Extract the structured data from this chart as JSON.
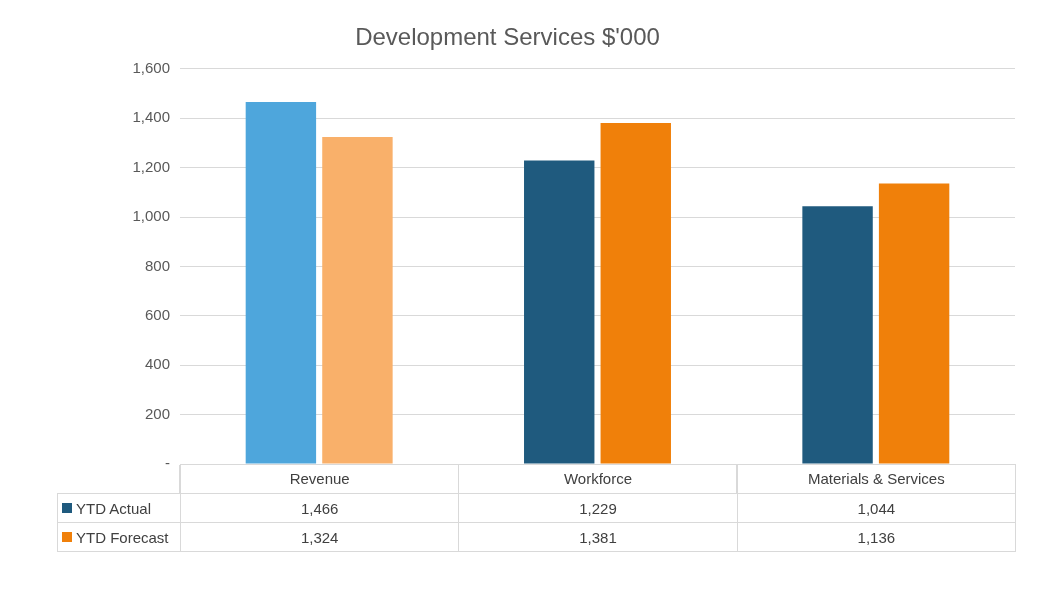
{
  "chart_data": {
    "type": "bar",
    "title": "Development Services $'000",
    "categories": [
      "Revenue",
      "Workforce",
      "Materials & Services"
    ],
    "series": [
      {
        "name": "YTD Actual",
        "color": "#1f5a7e",
        "colors": [
          "#4ea6dc",
          "#1f5a7e",
          "#1f5a7e"
        ],
        "values": [
          1466,
          1229,
          1044
        ],
        "value_labels": [
          "1,466",
          "1,229",
          "1,044"
        ]
      },
      {
        "name": "YTD Forecast",
        "color": "#f0800a",
        "colors": [
          "#f9b06a",
          "#f0800a",
          "#f0800a"
        ],
        "values": [
          1324,
          1381,
          1136
        ],
        "value_labels": [
          "1,324",
          "1,381",
          "1,136"
        ]
      }
    ],
    "ylim": [
      0,
      1600
    ],
    "yticks": [
      {
        "value": 0,
        "label": "-"
      },
      200,
      400,
      600,
      800,
      {
        "value": 1000,
        "label": "1,000"
      },
      {
        "value": 1200,
        "label": "1,200"
      },
      {
        "value": 1400,
        "label": "1,400"
      },
      {
        "value": 1600,
        "label": "1,600"
      }
    ],
    "grid": "y",
    "legend": "bottom left"
  }
}
